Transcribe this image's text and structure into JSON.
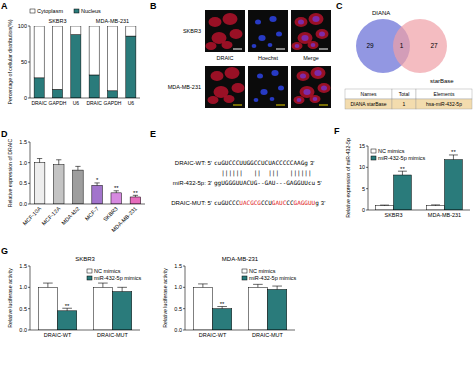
{
  "chart_data": [
    {
      "panel_label": "A",
      "type": "bar",
      "stacked": true,
      "y_label": "Percentage of cellular distribution(%)",
      "categories": [
        "DRAIC",
        "GAPDH",
        "U6",
        "DRAIC",
        "GAPDH",
        "U6"
      ],
      "group_labels": [
        "SKBR3",
        "MDA-MB-231"
      ],
      "series": [
        {
          "name": "Nucleus",
          "color": "#2a7b7b",
          "values": [
            28,
            12,
            88,
            32,
            10,
            86
          ]
        },
        {
          "name": "Cytoplasm",
          "color": "#ffffff",
          "values": [
            72,
            88,
            12,
            68,
            90,
            14
          ]
        }
      ],
      "ylim": [
        0,
        100
      ],
      "yticks": [
        0,
        50,
        100
      ],
      "legend": "top"
    },
    {
      "panel_label": "D",
      "type": "bar",
      "y_label": "Relative expression of DRAIC",
      "categories": [
        "MCF-10A",
        "MCF-12A",
        "MDA-kb2",
        "MCF-7",
        "SKBR3",
        "MDA-MB-231"
      ],
      "values": [
        1.0,
        0.95,
        0.82,
        0.45,
        0.27,
        0.17
      ],
      "errors": [
        0.1,
        0.12,
        0.09,
        0.06,
        0.05,
        0.04
      ],
      "significance": [
        null,
        null,
        null,
        "*",
        "**",
        "**"
      ],
      "colors": [
        "#eeeeee",
        "#c4c4c4",
        "#9e9e9e",
        "#a274cc",
        "#d68ae0",
        "#e66cbc"
      ],
      "ylim": [
        0,
        1.5
      ],
      "yticks": [
        {
          "value": 0,
          "label": "0.0"
        },
        0.5,
        {
          "value": 1,
          "label": "1.0"
        },
        1.5
      ]
    },
    {
      "panel_label": "F",
      "type": "bar",
      "y_label": "Relative expression of miR-432-5p",
      "categories": [
        "SKBR3",
        "MDA-MB-231"
      ],
      "series": [
        {
          "name": "NC mimics",
          "color": "#ffffff",
          "values": [
            1.0,
            1.0
          ],
          "errors": [
            0.15,
            0.2
          ]
        },
        {
          "name": "miR-432-5p mimics",
          "color": "#2a7b7b",
          "values": [
            8.2,
            11.8
          ],
          "errors": [
            0.9,
            1.1
          ],
          "significance": [
            "**",
            "**"
          ]
        }
      ],
      "ylim": [
        0,
        15
      ],
      "yticks": [
        0,
        5,
        10,
        15
      ],
      "legend": "top-left"
    },
    {
      "panel_label": "G",
      "type": "bar",
      "title": "SKBR3",
      "y_label": "Relative luciferase activity",
      "categories": [
        "DRAIC-WT",
        "DRAIC-MUT"
      ],
      "series": [
        {
          "name": "NC mimics",
          "color": "#ffffff",
          "values": [
            1.0,
            1.0
          ],
          "errors": [
            0.1,
            0.1
          ]
        },
        {
          "name": "miR-432-5p mimics",
          "color": "#2a7b7b",
          "values": [
            0.45,
            0.9
          ],
          "errors": [
            0.06,
            0.1
          ],
          "significance": [
            "**",
            null
          ]
        }
      ],
      "ylim": [
        0,
        1.5
      ],
      "yticks": [
        {
          "value": 0,
          "label": "0.0"
        },
        0.5,
        {
          "value": 1,
          "label": "1.0"
        },
        1.5
      ],
      "legend": "top-right"
    },
    {
      "type": "bar",
      "title": "MDA-MB-231",
      "y_label": "Relative luciferase activity",
      "categories": [
        "DRAIC-WT",
        "DRAIC-MUT"
      ],
      "series": [
        {
          "name": "NC mimics",
          "color": "#ffffff",
          "values": [
            1.0,
            1.0
          ],
          "errors": [
            0.08,
            0.07
          ]
        },
        {
          "name": "miR-432-5p mimics",
          "color": "#2a7b7b",
          "values": [
            0.5,
            0.95
          ],
          "errors": [
            0.05,
            0.08
          ],
          "significance": [
            "**",
            null
          ]
        }
      ],
      "ylim": [
        0,
        1.5
      ],
      "yticks": [
        {
          "value": 0,
          "label": "0.0"
        },
        0.5,
        {
          "value": 1,
          "label": "1.0"
        },
        1.5
      ],
      "legend": "top-right"
    }
  ],
  "panel_b": {
    "label": "B",
    "rows": [
      "SKBR3",
      "MDA-MB-231"
    ],
    "columns": [
      "DRAIC",
      "Hoechst",
      "Merge"
    ]
  },
  "panel_c": {
    "label": "C",
    "sets": [
      {
        "name": "DIANA",
        "only": 29
      },
      {
        "name": "starBase",
        "only": 27
      }
    ],
    "both": 1,
    "table": {
      "header": [
        "Names",
        "Total",
        "Elements"
      ],
      "rows": [
        [
          "DIANA starBase",
          1,
          "hsa-miR-432-5p"
        ]
      ]
    }
  },
  "panel_e": {
    "label": "E",
    "lines": [
      {
        "prefix": "DRAIC-WT: 5'",
        "segments": [
          {
            "text": "cuGUCCCUUGGCCUCUACCCCCAAGg",
            "mutated": false
          }
        ],
        "suffix": "3'"
      },
      {
        "prefix": "miR-432-5p: 3'",
        "segments": [
          {
            "text": "ggUGGGUUACUG--GAU---GAGGUUcu",
            "mutated": false
          }
        ],
        "suffix": "5'"
      },
      {
        "prefix": "DRAIC-MUT: 5'",
        "segments": [
          {
            "text": "cuGUCCC",
            "mutated": false
          },
          {
            "text": "UACGCG",
            "mutated": true
          },
          {
            "text": "CCU",
            "mutated": false
          },
          {
            "text": "GAUC",
            "mutated": true
          },
          {
            "text": "CC",
            "mutated": false
          },
          {
            "text": "GAGGUU",
            "mutated": true
          },
          {
            "text": "g",
            "mutated": false
          }
        ],
        "suffix": "3'"
      }
    ],
    "pairing": "  ||||||   ||  |||   |||||| "
  }
}
